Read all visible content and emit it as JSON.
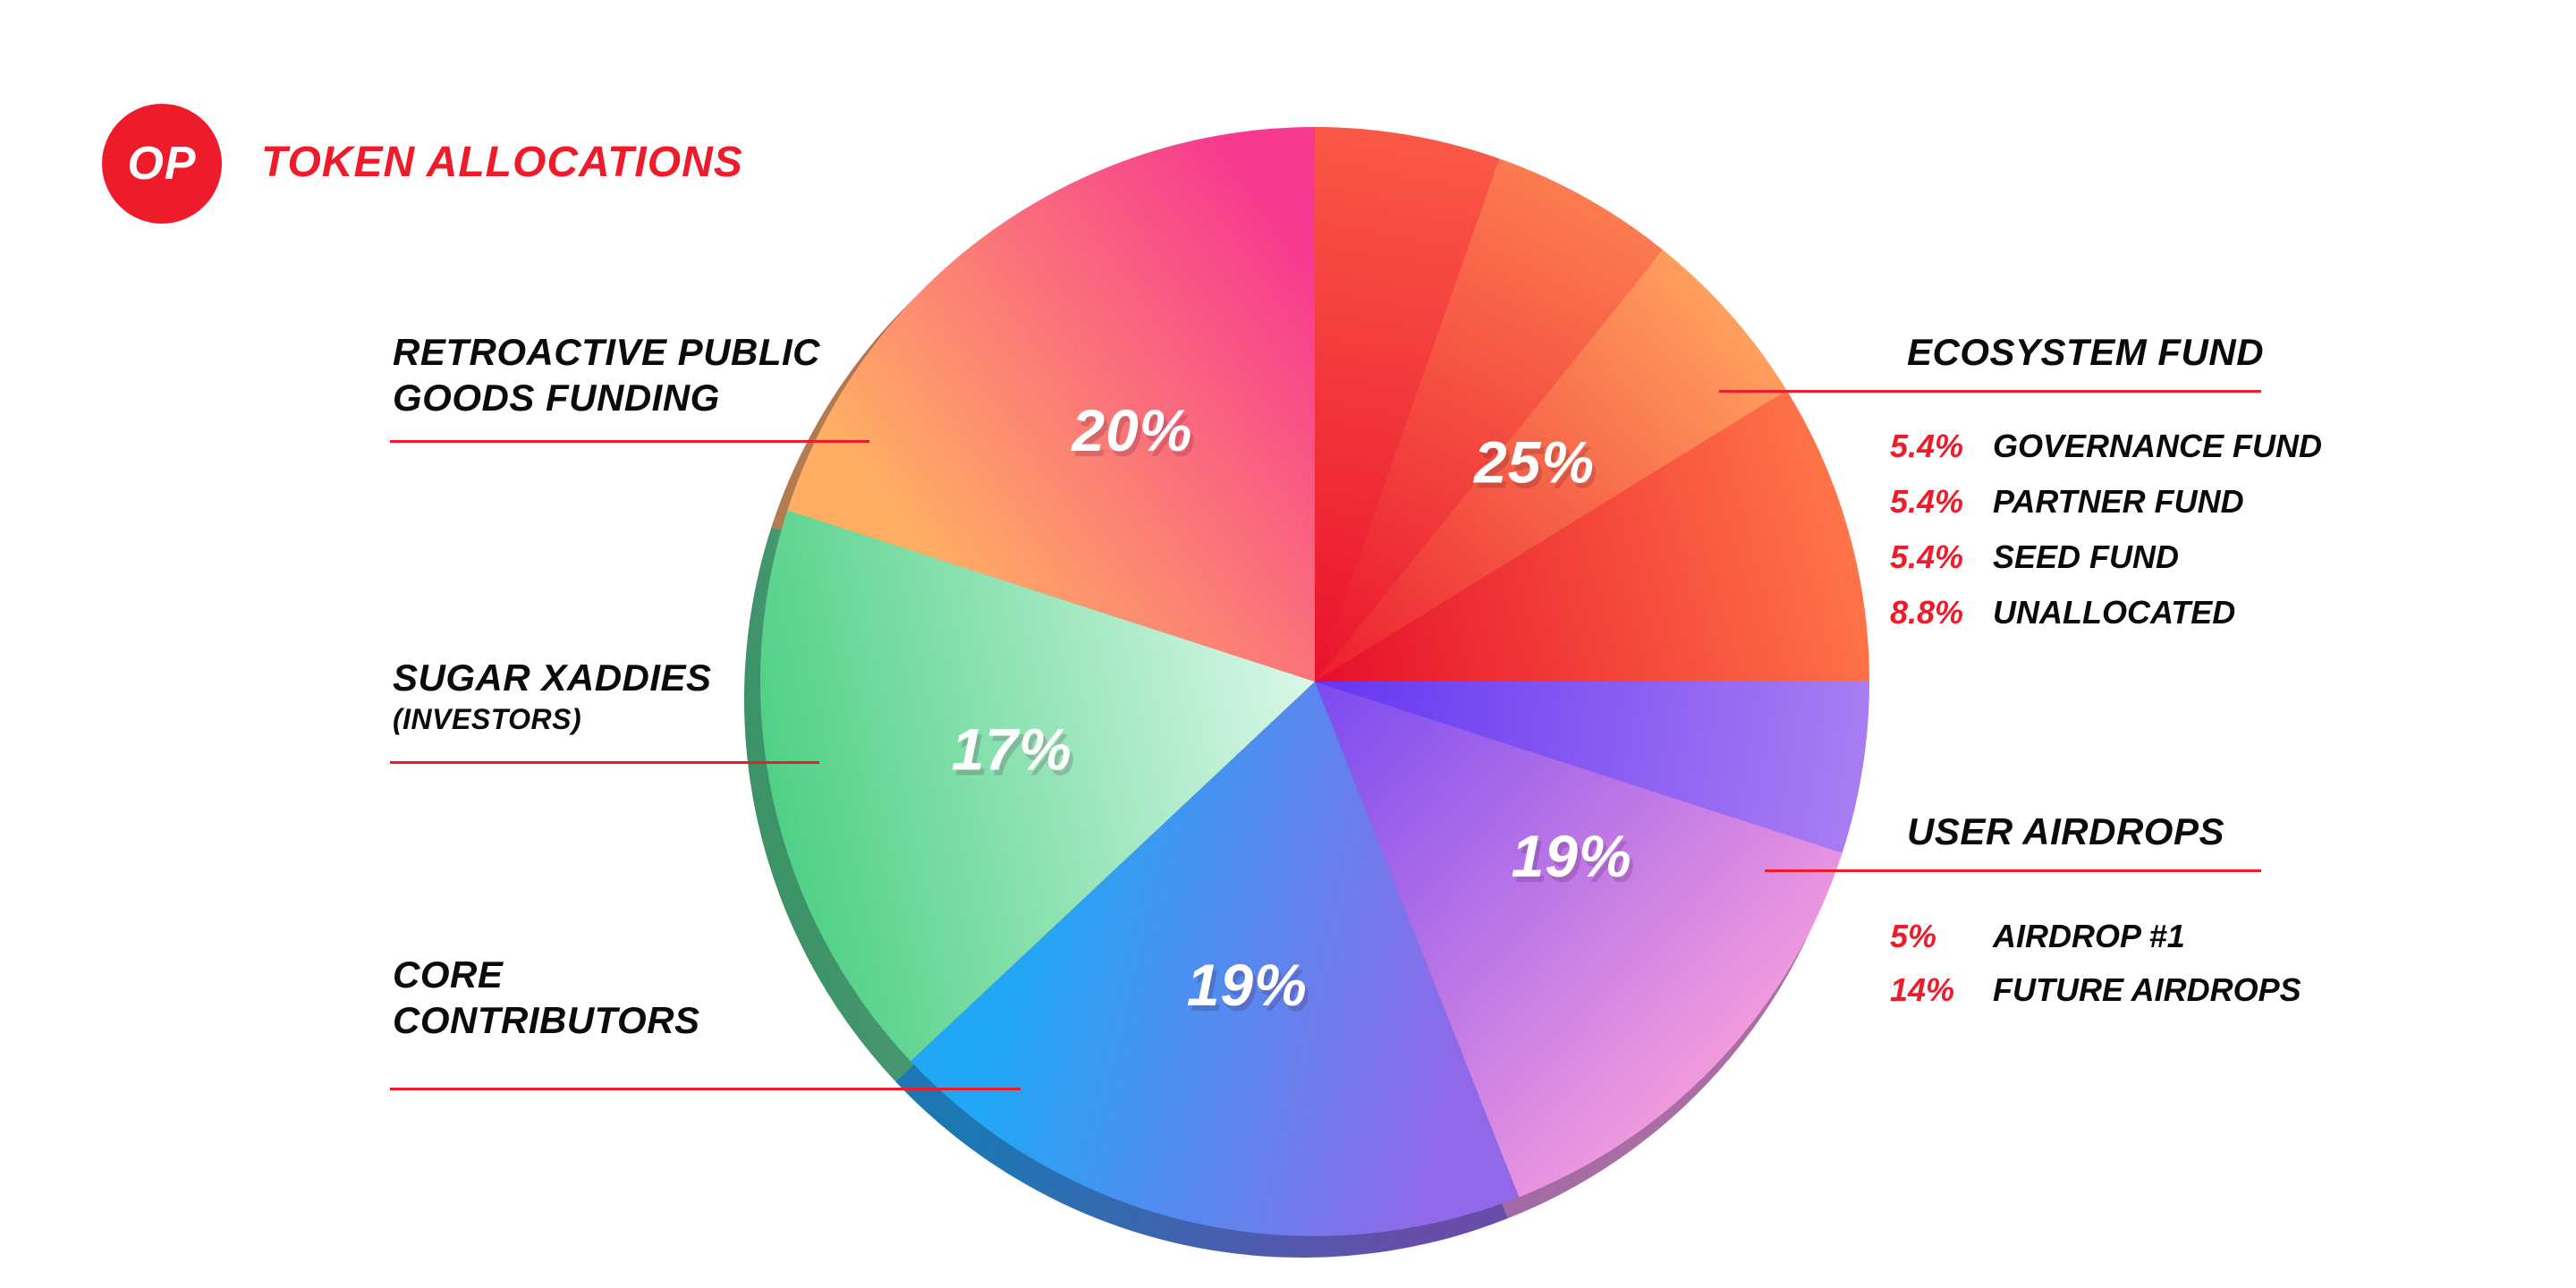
{
  "header": {
    "logo": "OP",
    "title": "TOKEN ALLOCATIONS"
  },
  "colors": {
    "accent": "#ee1c2b",
    "background": "#ffffff",
    "slice_label": "#ffffff"
  },
  "chart_data": {
    "type": "pie",
    "title": "TOKEN ALLOCATIONS",
    "units": "percent",
    "direction": "clockwise",
    "start_angle_deg": 0,
    "legend_position": "sides",
    "slices": [
      {
        "name": "Ecosystem Fund",
        "value": 25,
        "label": "25%",
        "segments": [
          {
            "name": "Governance Fund",
            "value": 5.4,
            "from": "#ea122d",
            "to": "#fa5846",
            "mode": "radial"
          },
          {
            "name": "Partner Fund",
            "value": 5.4,
            "from": "#ea122d",
            "to": "#fc7c50",
            "mode": "radial"
          },
          {
            "name": "Seed Fund",
            "value": 5.4,
            "from": "#ec1c2e",
            "to": "#ff9f5e",
            "mode": "radial"
          },
          {
            "name": "Unallocated",
            "value": 8.8,
            "from": "#e60e2b",
            "to": "#ff7448",
            "mode": "radial"
          }
        ]
      },
      {
        "name": "User Airdrops",
        "value": 19,
        "label": "19%",
        "segments": [
          {
            "name": "Airdrop #1",
            "value": 5,
            "from": "#6336f2",
            "to": "#a97df2",
            "mode": "radial"
          },
          {
            "name": "Future Airdrops",
            "value": 14,
            "from": "#7a4af0",
            "to": "#f19ade",
            "mode": "radial"
          }
        ]
      },
      {
        "name": "Core Contributors",
        "value": 19,
        "label": "19%",
        "segments": [
          {
            "name": "Core Contributors",
            "value": 19,
            "from": "#9168e8",
            "to": "#21a7f5",
            "mode": "sweep"
          }
        ]
      },
      {
        "name": "Sugar Xaddies (Investors)",
        "value": 17,
        "label": "17%",
        "segments": [
          {
            "name": "Sugar Xaddies",
            "value": 17,
            "from": "#daf8e9",
            "to": "#50d086",
            "mode": "radial"
          }
        ]
      },
      {
        "name": "Retroactive Public Goods Funding",
        "value": 20,
        "label": "20%",
        "segments": [
          {
            "name": "Retroactive Public Goods Funding",
            "value": 20,
            "from": "#ffae63",
            "to": "#f73a8f",
            "mode": "sweep"
          }
        ]
      }
    ]
  },
  "annotations": {
    "left": {
      "retroactive": {
        "line1": "RETROACTIVE PUBLIC",
        "line2": "GOODS FUNDING"
      },
      "sugar": {
        "line1": "SUGAR XADDIES",
        "line2": "(INVESTORS)"
      },
      "core": {
        "line1": "CORE",
        "line2": "CONTRIBUTORS"
      }
    },
    "right": {
      "ecosystem": {
        "heading": "ECOSYSTEM FUND",
        "items": [
          {
            "pct": "5.4%",
            "name": "GOVERNANCE FUND"
          },
          {
            "pct": "5.4%",
            "name": "PARTNER FUND"
          },
          {
            "pct": "5.4%",
            "name": "SEED FUND"
          },
          {
            "pct": "8.8%",
            "name": "UNALLOCATED"
          }
        ]
      },
      "airdrops": {
        "heading": "USER AIRDROPS",
        "items": [
          {
            "pct": "5%",
            "name": "AIRDROP #1"
          },
          {
            "pct": "14%",
            "name": "FUTURE AIRDROPS"
          }
        ]
      }
    }
  }
}
